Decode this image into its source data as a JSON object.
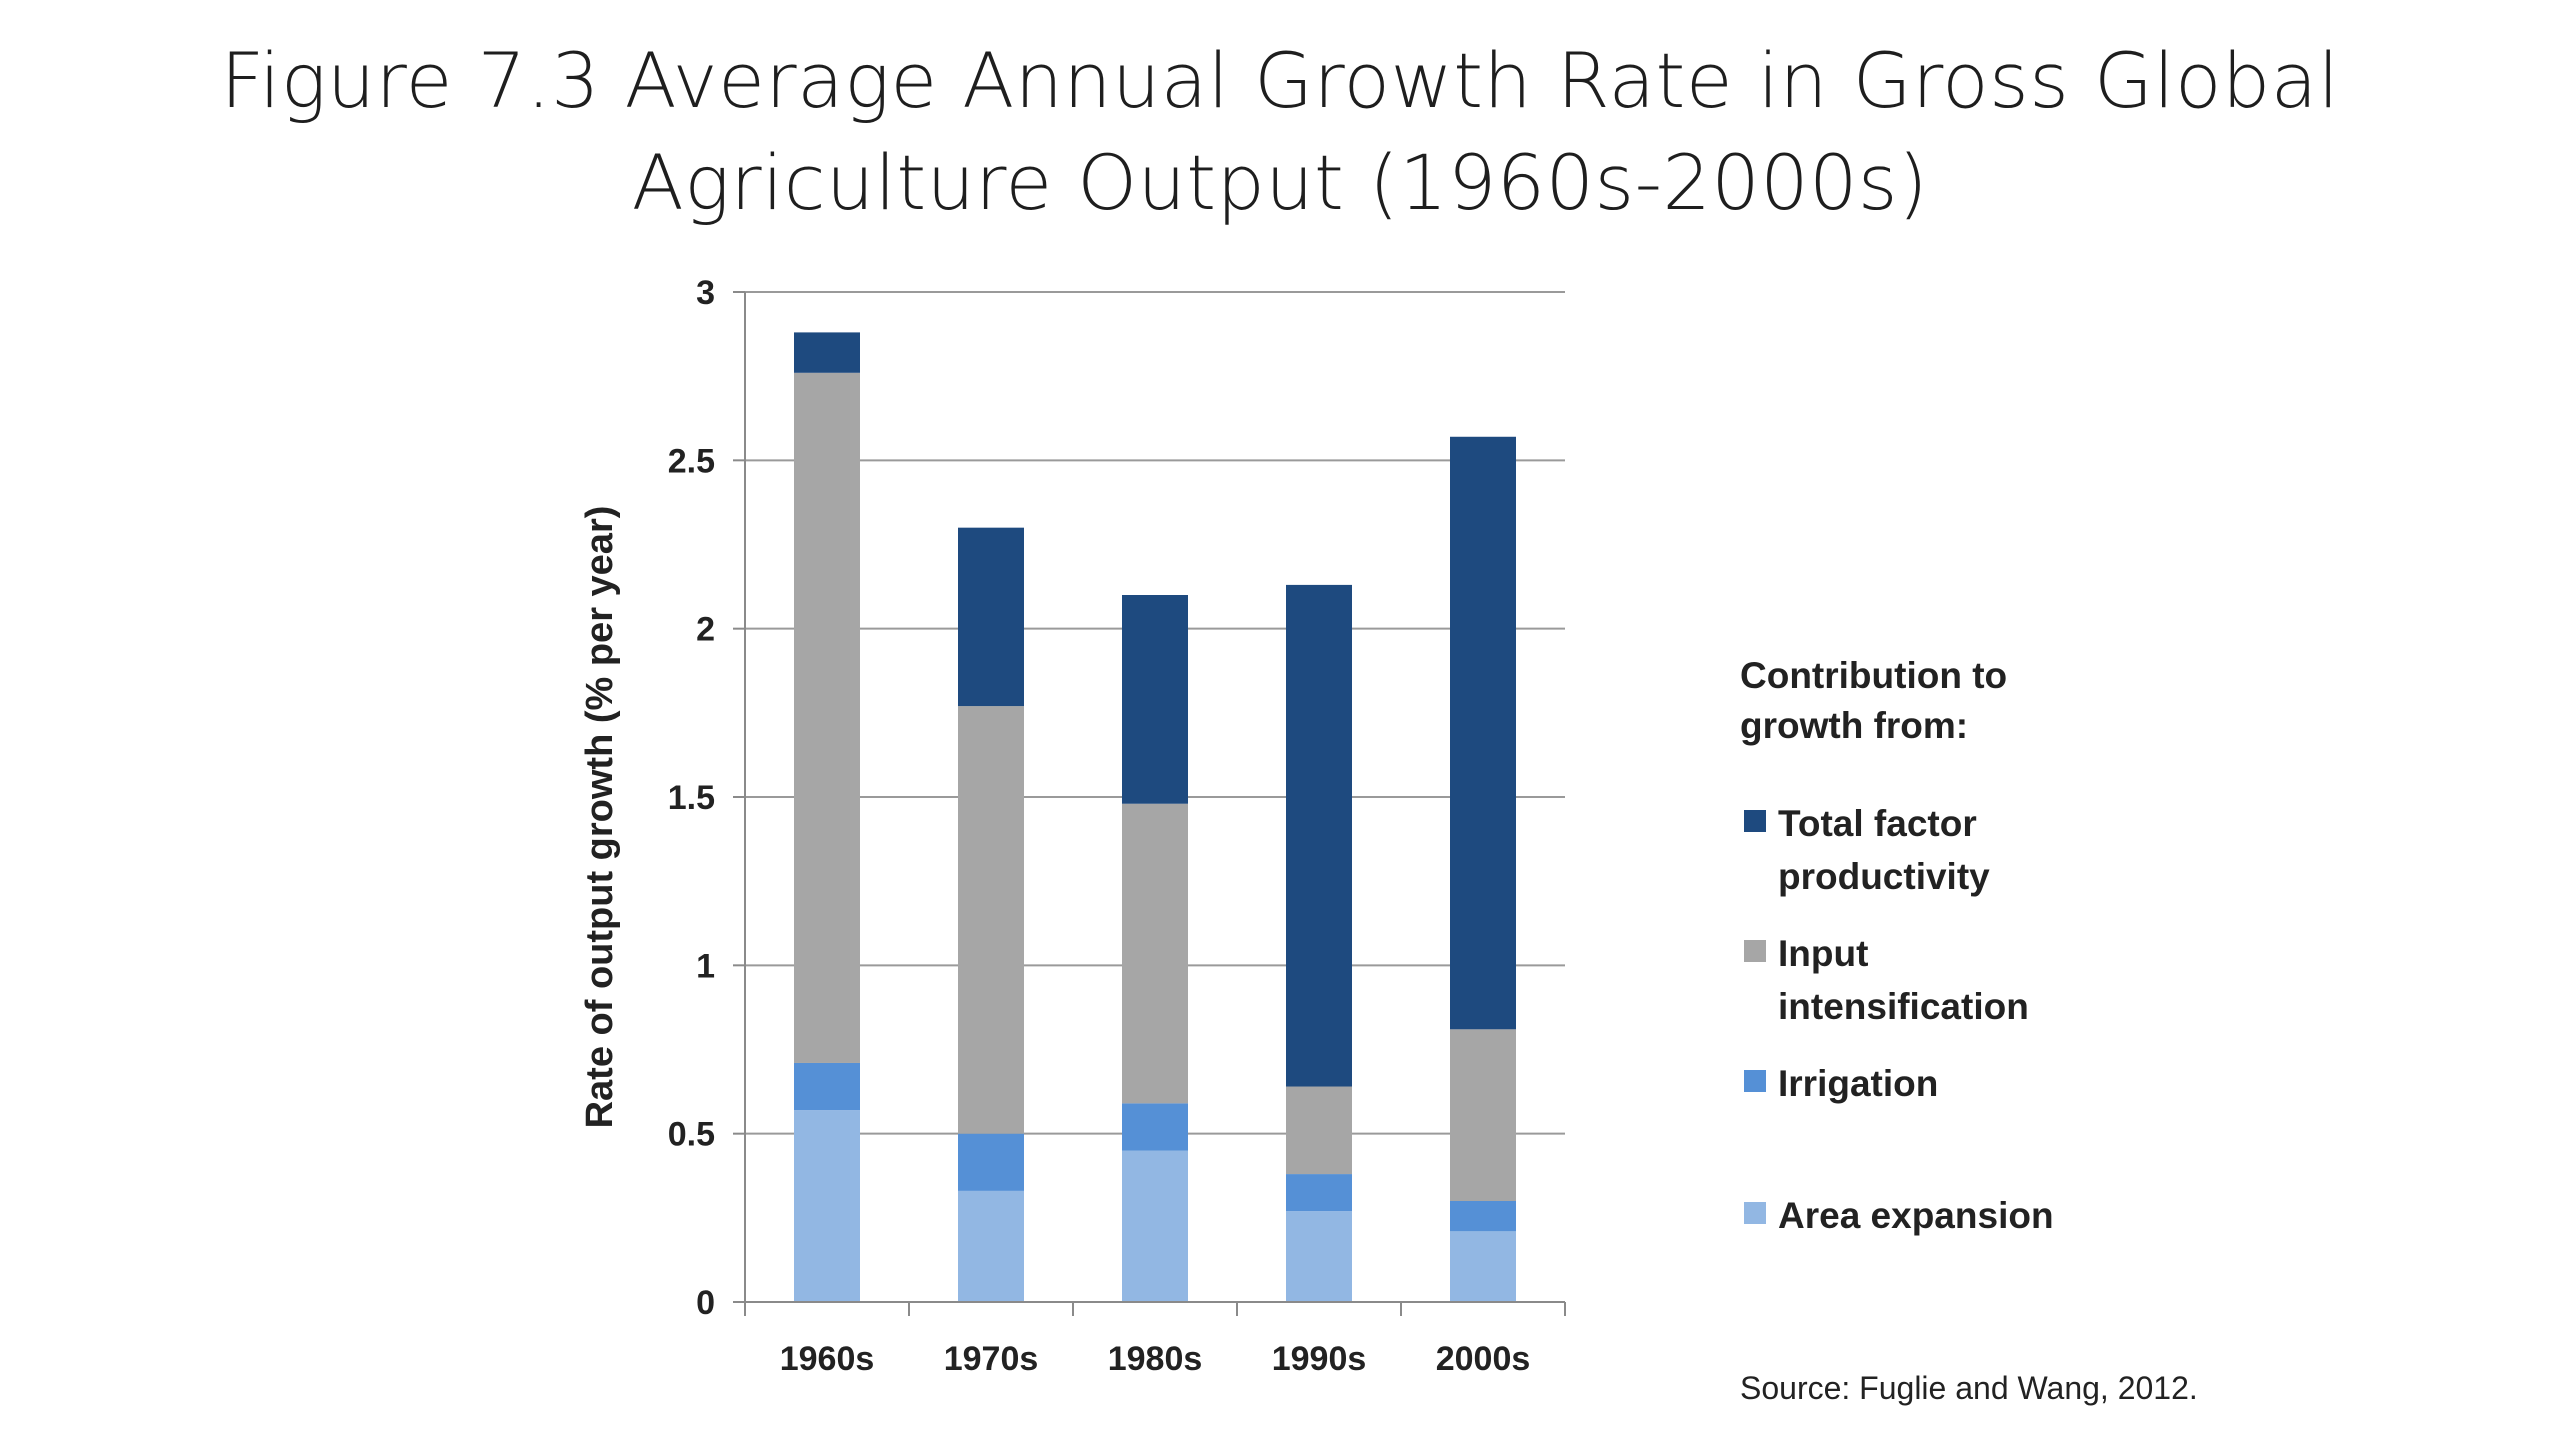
{
  "slide": {
    "title_line1": "Figure 7.3 Average Annual Growth Rate in Gross Global",
    "title_line2": "Agriculture Output (1960s-2000s)",
    "source": "Source: Fuglie and Wang, 2012."
  },
  "chart_data": {
    "type": "bar",
    "stacked": true,
    "categories": [
      "1960s",
      "1970s",
      "1980s",
      "1990s",
      "2000s"
    ],
    "series": [
      {
        "name": "Area expansion",
        "color": "#92b7e3",
        "values": [
          0.57,
          0.33,
          0.45,
          0.27,
          0.21
        ]
      },
      {
        "name": "Irrigation",
        "color": "#5590d6",
        "values": [
          0.14,
          0.17,
          0.14,
          0.11,
          0.09
        ]
      },
      {
        "name": "Input intensification",
        "color": "#a6a6a6",
        "values": [
          2.05,
          1.27,
          0.89,
          0.26,
          0.51
        ]
      },
      {
        "name": "Total factor productivity",
        "color": "#1e4a7f",
        "values": [
          0.12,
          0.53,
          0.62,
          1.49,
          1.76
        ]
      }
    ],
    "ylabel": "Rate of output growth (% per year)",
    "xlabel": "",
    "ylim": [
      0,
      3
    ],
    "yticks": [
      "0",
      "0.5",
      "1",
      "1.5",
      "2",
      "2.5",
      "3"
    ],
    "grid": true,
    "legend": {
      "title_line1": "Contribution to",
      "title_line2": "growth from:",
      "placement": "right",
      "entries": [
        {
          "series": "Total factor productivity",
          "line1": "Total factor",
          "line2": "productivity",
          "color": "#1e4a7f"
        },
        {
          "series": "Input intensification",
          "line1": "Input",
          "line2": "intensification",
          "color": "#a6a6a6"
        },
        {
          "series": "Irrigation",
          "line1": "Irrigation",
          "line2": "",
          "color": "#5590d6"
        },
        {
          "series": "Area expansion",
          "line1": "Area expansion",
          "line2": "",
          "color": "#92b7e3"
        }
      ]
    }
  }
}
